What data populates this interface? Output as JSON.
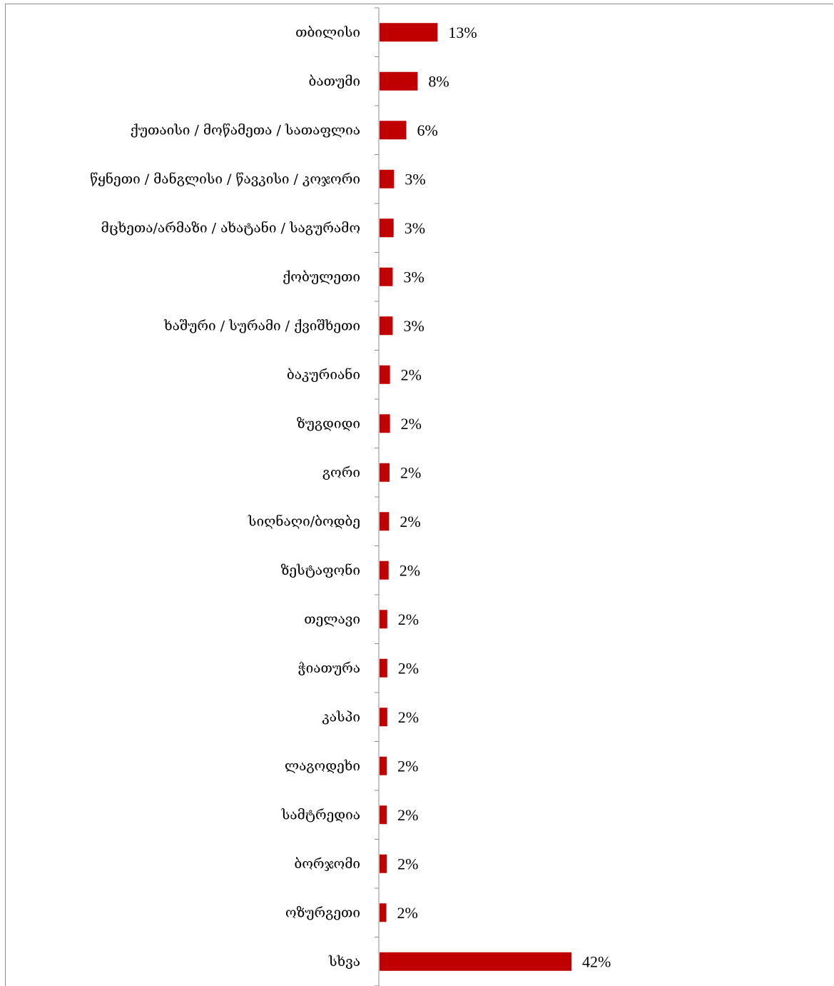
{
  "chart_data": {
    "type": "bar",
    "orientation": "horizontal",
    "categories": [
      "თბილისი",
      "ბათუმი",
      "ქუთაისი / მოწამეთა / სათაფლია",
      "წყნეთი / მანგლისი / წავკისი / კოჯორი",
      "მცხეთა/არმაზი / ახატანი / საგურამო",
      "ქობულეთი",
      "ხაშური / სურამი / ქვიშხეთი",
      "ბაკურიანი",
      "ზუგდიდი",
      "გორი",
      "სიღნაღი/ბოდბე",
      "ზესტაფონი",
      "თელავი",
      "ჭიათურა",
      "კასპი",
      "ლაგოდეხი",
      "სამტრედია",
      "ბორჯომი",
      "ოზურგეთი",
      "სხვა"
    ],
    "values": [
      13,
      8,
      6,
      3,
      3,
      3,
      3,
      2,
      2,
      2,
      2,
      2,
      2,
      2,
      2,
      2,
      2,
      2,
      2,
      42
    ],
    "value_labels": [
      "13%",
      "8%",
      "6%",
      "3%",
      "3%",
      "3%",
      "3%",
      "2%",
      "2%",
      "2%",
      "2%",
      "2%",
      "2%",
      "2%",
      "2%",
      "2%",
      "2%",
      "2%",
      "2%",
      "42%"
    ],
    "bar_lengths_exact": [
      12.8,
      8.4,
      5.9,
      3.2,
      3.1,
      2.9,
      2.9,
      2.3,
      2.3,
      2.2,
      2.1,
      2.0,
      1.7,
      1.7,
      1.7,
      1.6,
      1.6,
      1.6,
      1.5,
      42.3
    ],
    "bar_color": "#c00000",
    "grid": false,
    "legend": "none",
    "xlim": [
      0,
      42.3
    ]
  }
}
